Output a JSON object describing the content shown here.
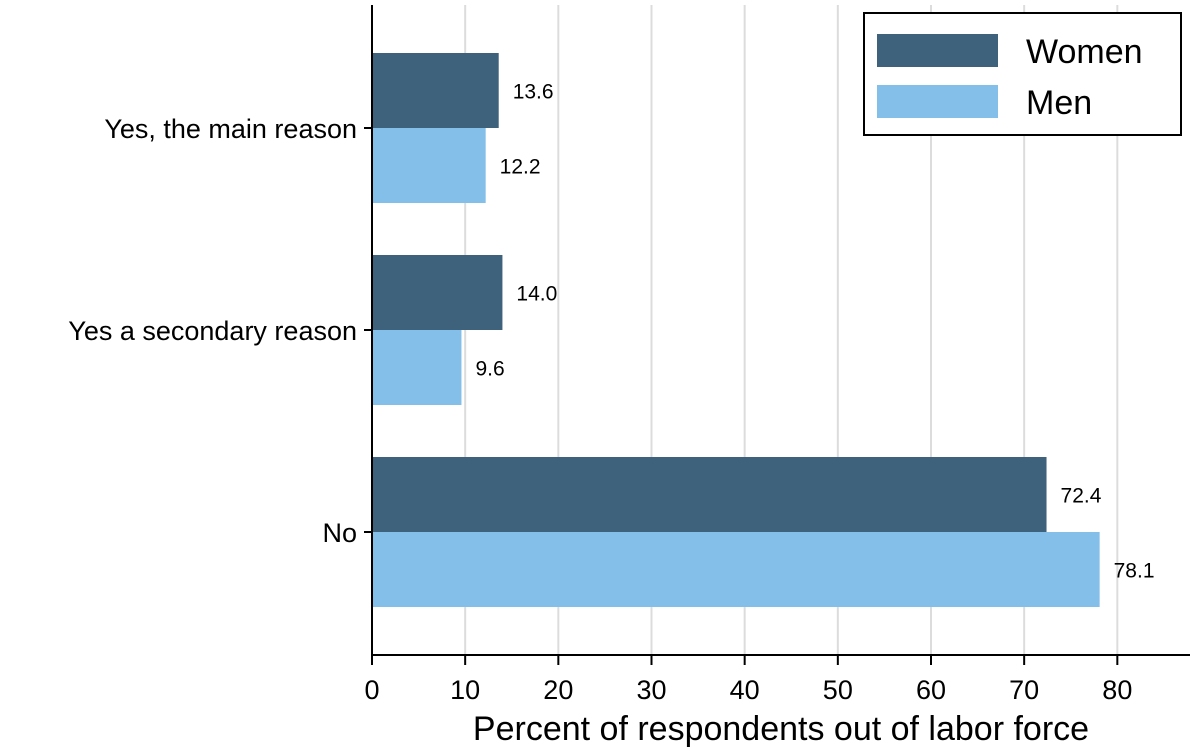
{
  "chart_data": {
    "type": "bar",
    "orientation": "horizontal",
    "categories": [
      "Yes, the main reason",
      "Yes a secondary reason",
      "No"
    ],
    "series": [
      {
        "name": "Women",
        "color": "#3e627c",
        "values": [
          13.6,
          14.0,
          72.4
        ],
        "labels": [
          "13.6",
          "14.0",
          "72.4"
        ]
      },
      {
        "name": "Men",
        "color": "#83bfe9",
        "values": [
          12.2,
          9.6,
          78.1
        ],
        "labels": [
          "12.2",
          "9.6",
          "78.1"
        ]
      }
    ],
    "xlabel": "Percent of respondents out of labor force",
    "ylabel": "",
    "title": "",
    "xlim": [
      0,
      87.8
    ],
    "xticks": [
      0,
      10,
      20,
      30,
      40,
      50,
      60,
      70,
      80
    ],
    "xtick_labels": [
      "0",
      "10",
      "20",
      "30",
      "40",
      "50",
      "60",
      "70",
      "80"
    ],
    "grid": "vertical",
    "grid_color": "#dcdcdc",
    "legend_placement": "top-right"
  }
}
